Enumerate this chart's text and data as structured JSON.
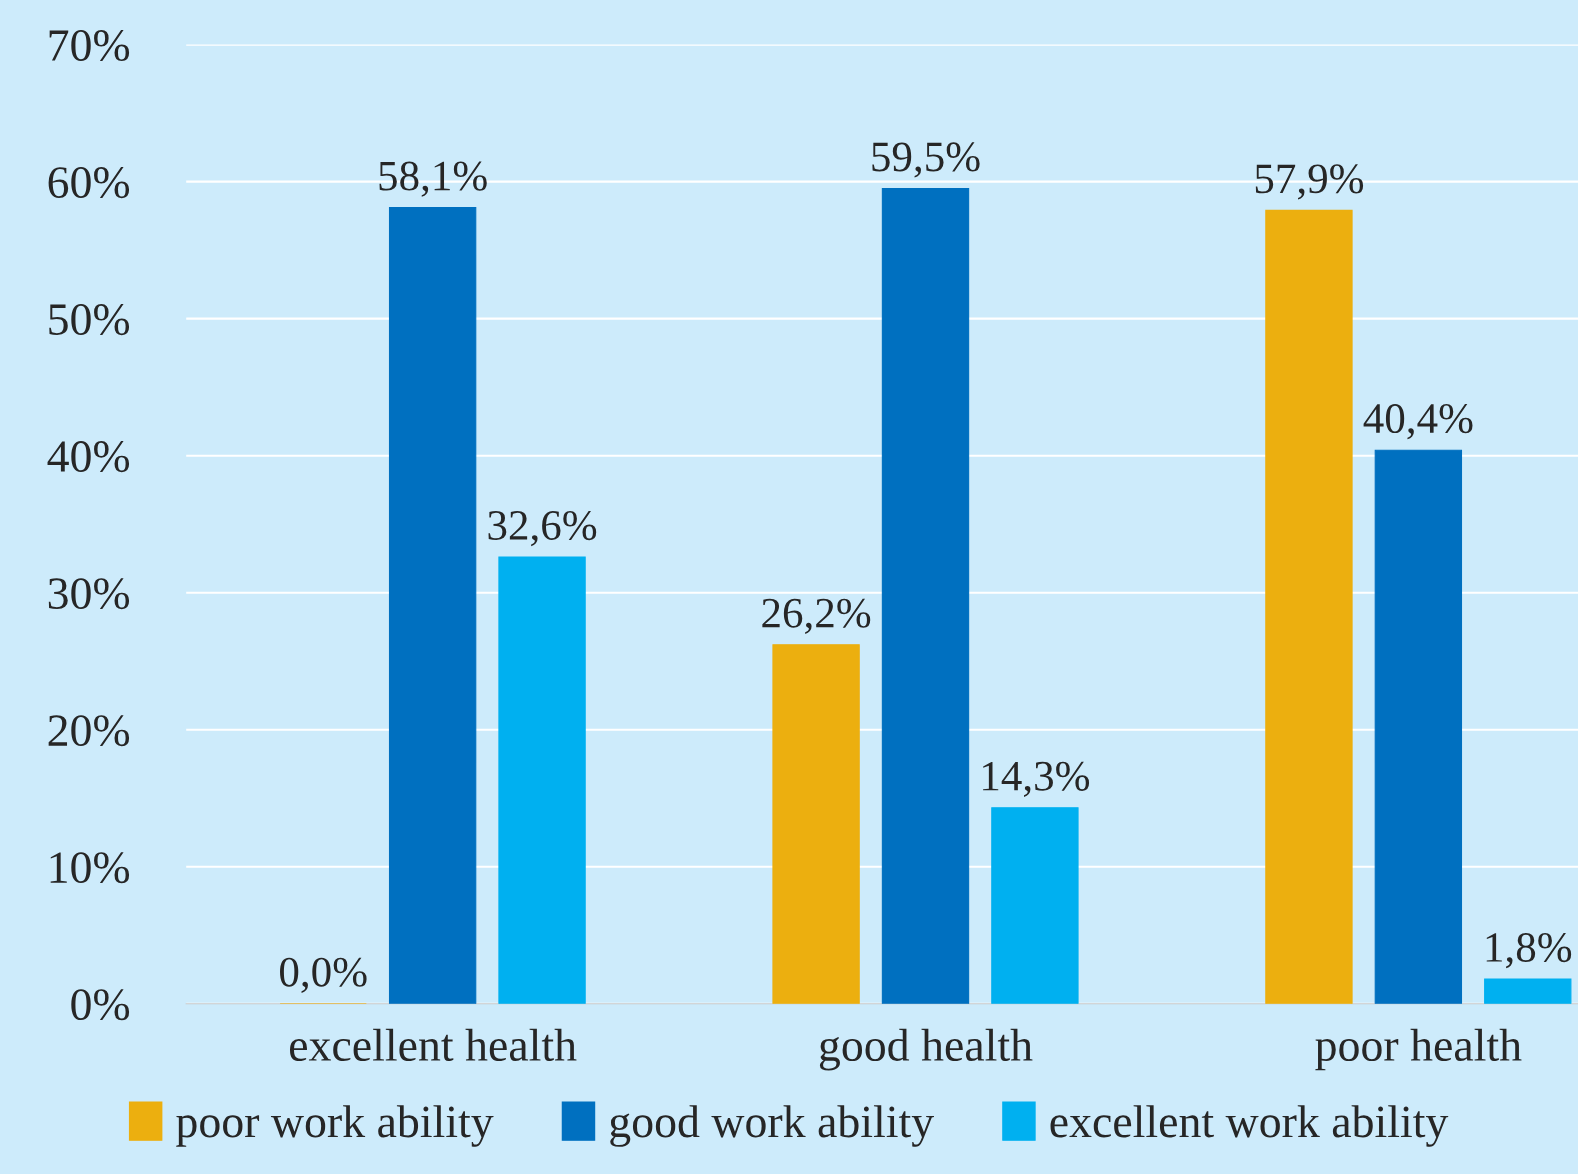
{
  "chart_data": {
    "type": "bar",
    "categories": [
      "excellent health",
      "good health",
      "poor health"
    ],
    "series": [
      {
        "name": "poor work ability",
        "color": "#ecaf0f",
        "values": [
          0.0,
          26.2,
          57.9
        ],
        "value_labels": [
          "0,0%",
          "26,2%",
          "57,9%"
        ]
      },
      {
        "name": "good work ability",
        "color": "#0070c0",
        "values": [
          58.1,
          59.5,
          40.4
        ],
        "value_labels": [
          "58,1%",
          "59,5%",
          "40,4%"
        ]
      },
      {
        "name": "excellent work ability",
        "color": "#00b0f0",
        "values": [
          32.6,
          14.3,
          1.8
        ],
        "value_labels": [
          "32,6%",
          "14,3%",
          "1,8%"
        ]
      }
    ],
    "ylim": [
      0,
      70
    ],
    "yticks": [
      {
        "value": 0,
        "label": "0%"
      },
      {
        "value": 10,
        "label": "10%"
      },
      {
        "value": 20,
        "label": "20%"
      },
      {
        "value": 30,
        "label": "30%"
      },
      {
        "value": 40,
        "label": "40%"
      },
      {
        "value": 50,
        "label": "50%"
      },
      {
        "value": 60,
        "label": "60%"
      },
      {
        "value": 70,
        "label": "70%"
      }
    ],
    "grid": "y",
    "legend": "bottom"
  }
}
